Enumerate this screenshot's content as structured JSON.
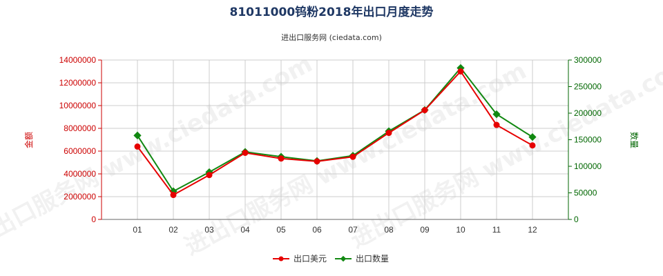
{
  "chart_data": {
    "type": "line",
    "title": "81011000钨粉2018年出口月度走势",
    "subtitle": "进出口服务网 (ciedata.com)",
    "categories": [
      "01",
      "02",
      "03",
      "04",
      "05",
      "06",
      "07",
      "08",
      "09",
      "10",
      "11",
      "12"
    ],
    "y_left": {
      "label": "金额",
      "ylim": [
        0,
        14000000
      ],
      "ticks": [
        "0",
        "2000000",
        "4000000",
        "6000000",
        "8000000",
        "10000000",
        "12000000",
        "14000000"
      ]
    },
    "y_right": {
      "label": "数量",
      "ylim": [
        0,
        300000
      ],
      "ticks": [
        "0",
        "50000",
        "100000",
        "150000",
        "200000",
        "250000",
        "300000"
      ]
    },
    "series": [
      {
        "name": "出口美元",
        "axis": "left",
        "color": "#e60000",
        "values": [
          6400000,
          2150000,
          3900000,
          5850000,
          5350000,
          5100000,
          5500000,
          7600000,
          9600000,
          13000000,
          8300000,
          6500000
        ]
      },
      {
        "name": "出口数量",
        "axis": "right",
        "color": "#118811",
        "values": [
          158000,
          53000,
          89000,
          127000,
          118000,
          110000,
          120000,
          166000,
          206000,
          285000,
          198000,
          155000
        ]
      }
    ],
    "grid": true,
    "legend_position": "bottom-center",
    "watermark": "进出口服务网 www.ciedata.com"
  }
}
